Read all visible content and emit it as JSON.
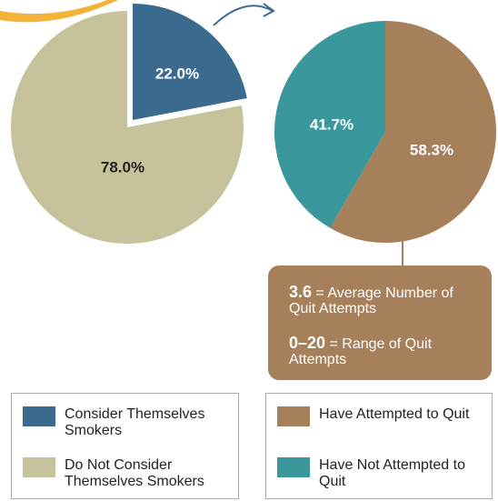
{
  "chart_data": [
    {
      "type": "pie",
      "categories": [
        "Consider Themselves Smokers",
        "Do Not Consider Themselves Smokers"
      ],
      "values": [
        22.0,
        78.0
      ],
      "value_labels": [
        "22.0%",
        "78.0%"
      ],
      "colors": [
        "#3b6a8f",
        "#c6c39c"
      ]
    },
    {
      "type": "pie",
      "categories": [
        "Have Attempted to Quit",
        "Have Not Attempted to Quit"
      ],
      "values": [
        58.3,
        41.7
      ],
      "value_labels": [
        "58.3%",
        "41.7%"
      ],
      "colors": [
        "#a67f5b",
        "#3a979b"
      ]
    }
  ],
  "callout": [
    {
      "value": "3.6",
      "text": "= Average Number of Quit Attempts"
    },
    {
      "value": "0–20",
      "text": "= Range of Quit Attempts"
    }
  ]
}
